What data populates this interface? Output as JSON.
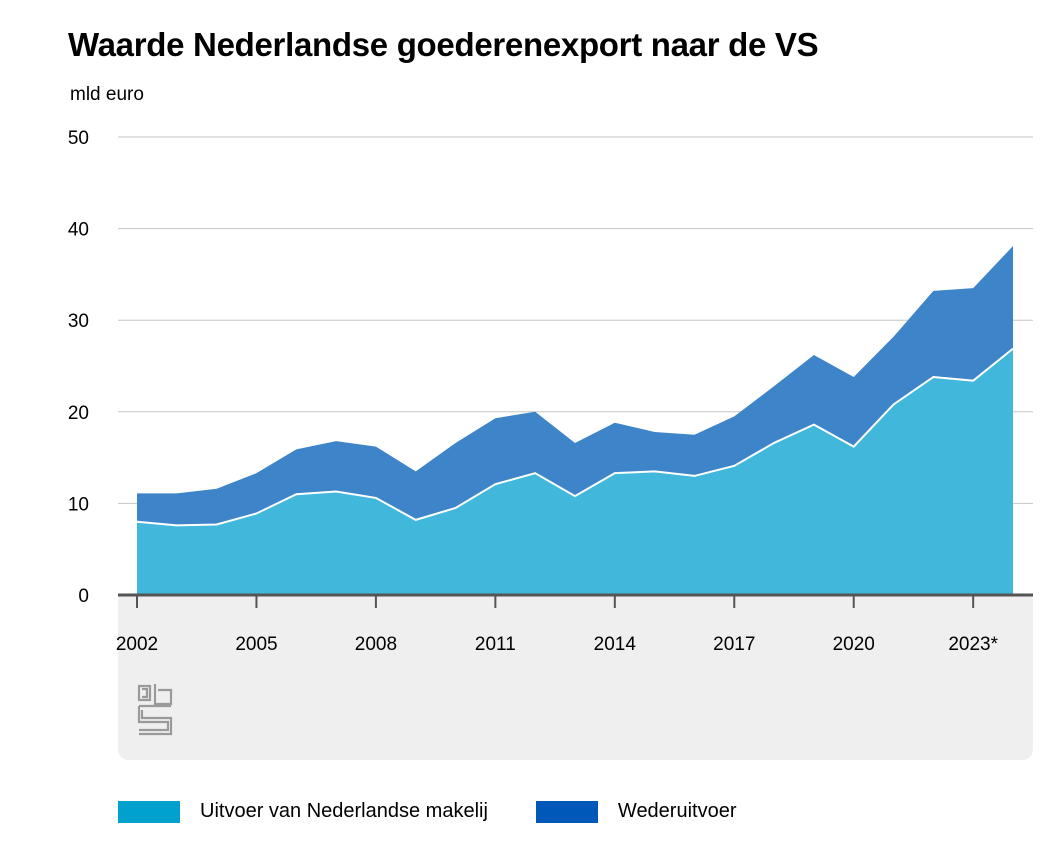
{
  "header": {
    "title": "Waarde Nederlandse goederenexport naar de VS",
    "unit": "mld euro"
  },
  "chart_data": {
    "type": "area",
    "stacked": true,
    "x": [
      2002,
      2003,
      2004,
      2005,
      2006,
      2007,
      2008,
      2009,
      2010,
      2011,
      2012,
      2013,
      2014,
      2015,
      2016,
      2017,
      2018,
      2019,
      2020,
      2021,
      2022,
      2023,
      2024
    ],
    "xticks": [
      "2002",
      "2005",
      "2008",
      "2011",
      "2014",
      "2017",
      "2020",
      "2023*"
    ],
    "xtick_years": [
      2002,
      2005,
      2008,
      2011,
      2014,
      2017,
      2020,
      2023
    ],
    "yticks": [
      "0",
      "10",
      "20",
      "30",
      "40",
      "50"
    ],
    "ylim": [
      0,
      50
    ],
    "grid": true,
    "legend_position": "bottom",
    "series": [
      {
        "name": "Uitvoer van Nederlandse makelij",
        "color": "#41b8db",
        "values": [
          8.0,
          7.6,
          7.7,
          8.9,
          11.0,
          11.3,
          10.6,
          8.2,
          9.5,
          12.1,
          13.3,
          10.8,
          13.3,
          13.5,
          13.0,
          14.1,
          16.6,
          18.6,
          16.2,
          20.8,
          23.8,
          23.4,
          26.9
        ]
      },
      {
        "name": "Wederuitvoer",
        "color": "#3e84c9",
        "values": [
          3.1,
          3.5,
          3.9,
          4.4,
          4.9,
          5.5,
          5.6,
          5.3,
          7.1,
          7.2,
          6.7,
          5.8,
          5.5,
          4.3,
          4.5,
          5.4,
          6.2,
          7.6,
          7.6,
          7.4,
          9.4,
          10.1,
          11.2
        ]
      }
    ]
  },
  "legend": {
    "items": [
      {
        "label": "Uitvoer van Nederlandse makelij",
        "color": "#00a1cd"
      },
      {
        "label": "Wederuitvoer",
        "color": "#0058b8"
      }
    ]
  },
  "logo": {
    "icon": "cbs-logo-icon"
  }
}
